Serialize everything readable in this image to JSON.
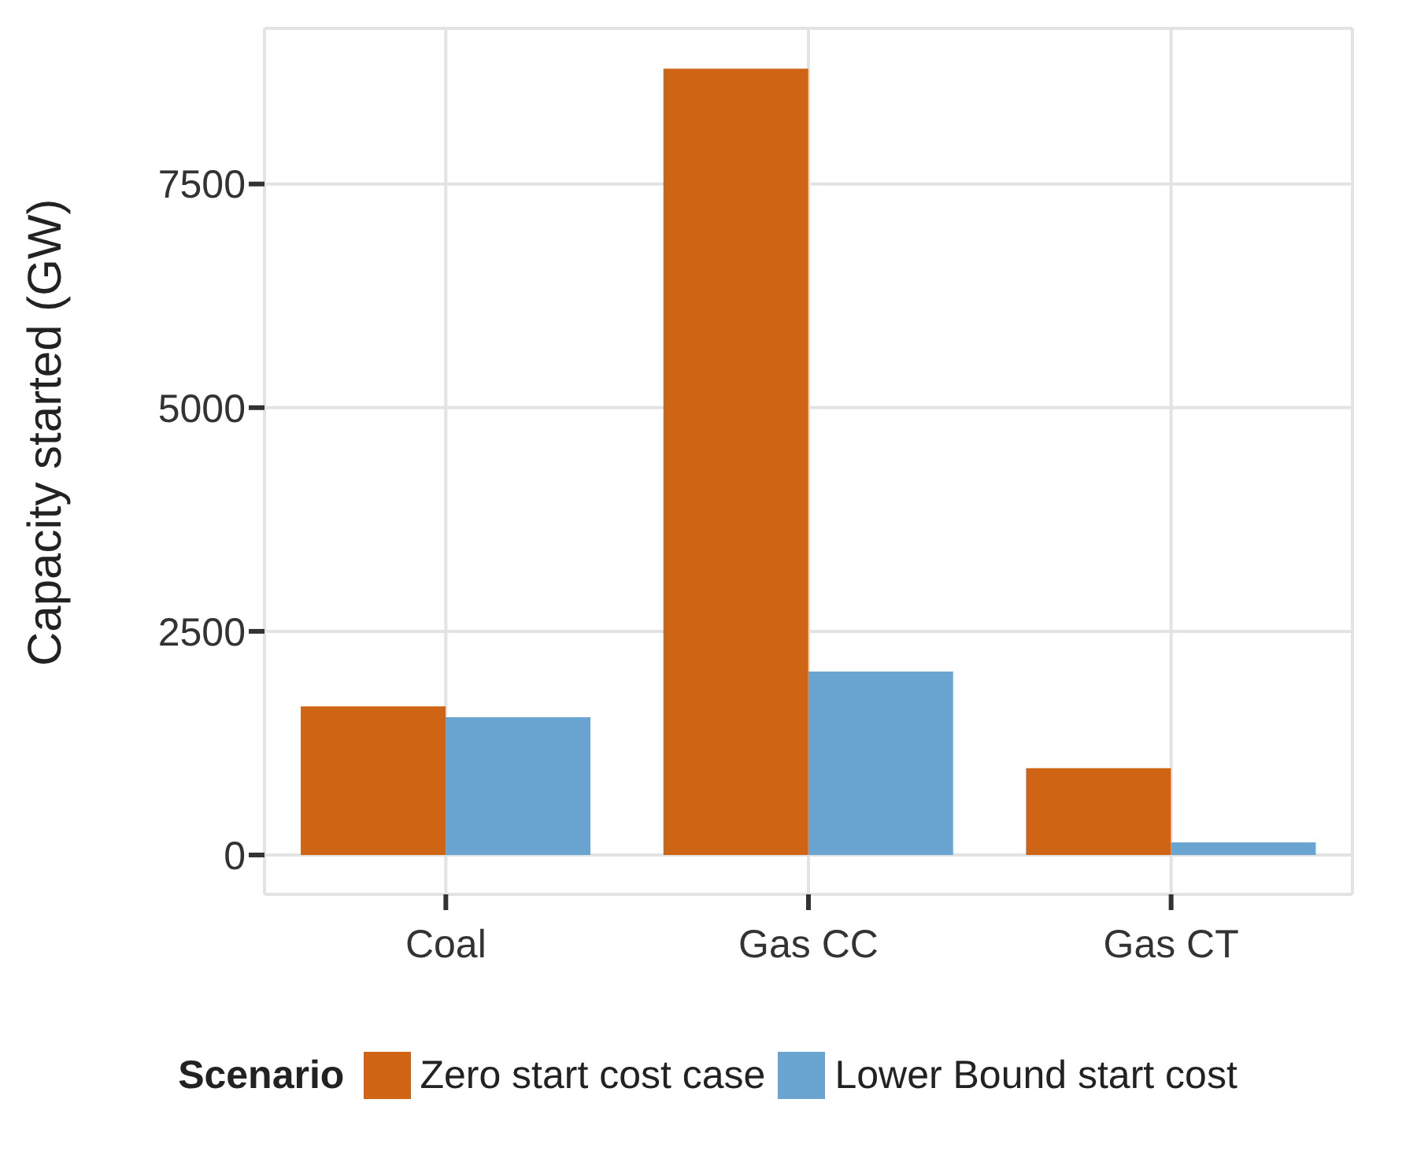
{
  "chart_data": {
    "type": "bar",
    "ylabel": "Capacity started (GW)",
    "legend_title": "Scenario",
    "categories": [
      "Coal",
      "Gas CC",
      "Gas CT"
    ],
    "series": [
      {
        "name": "Zero start cost case",
        "color": "#d06415",
        "values": [
          1660,
          8790,
          970
        ]
      },
      {
        "name": "Lower Bound start cost",
        "color": "#6aa4d0",
        "values": [
          1540,
          2050,
          140
        ]
      }
    ],
    "ylim": [
      -440,
      9240
    ],
    "yticks": [
      0,
      2500,
      5000,
      7500
    ],
    "grid": true,
    "legend": "bottom"
  }
}
